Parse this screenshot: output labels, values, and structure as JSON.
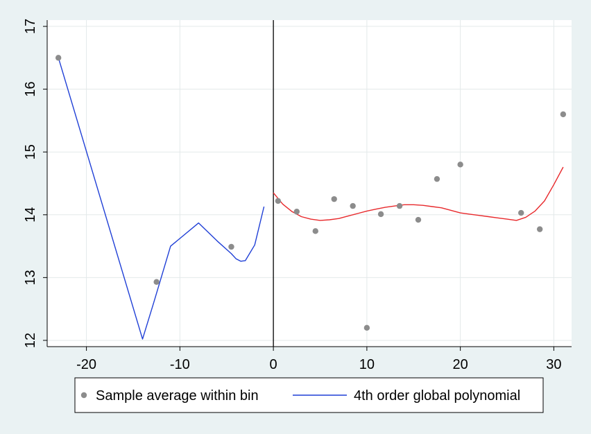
{
  "chart_data": {
    "type": "scatter",
    "title": "",
    "xlabel": "",
    "ylabel": "",
    "xlim": [
      -24.2,
      31.9
    ],
    "ylim": [
      11.9,
      17.1
    ],
    "xticks": [
      -20,
      -10,
      0,
      10,
      20,
      30
    ],
    "yticks": [
      12,
      13,
      14,
      15,
      16,
      17
    ],
    "xtick_labels": [
      "-20",
      "-10",
      "0",
      "10",
      "20",
      "30"
    ],
    "ytick_labels": [
      "12",
      "13",
      "14",
      "15",
      "16",
      "17"
    ],
    "grid": true,
    "cutoff_x": 0,
    "legend_position": "bottom",
    "colors": {
      "points": "#8c8c8c",
      "left_fit": "#1f3fd6",
      "right_fit": "#e8282b",
      "cutoff": "#000000",
      "plot_bg": "#ffffff",
      "outer_bg": "#eaf2f3",
      "grid": "#e3e9ea"
    },
    "series": [
      {
        "name": "Sample average within bin",
        "kind": "scatter",
        "points": [
          [
            -23,
            16.5
          ],
          [
            -12.5,
            12.93
          ],
          [
            -4.5,
            13.49
          ],
          [
            0.5,
            14.22
          ],
          [
            2.5,
            14.05
          ],
          [
            4.5,
            13.74
          ],
          [
            6.5,
            14.25
          ],
          [
            8.5,
            14.14
          ],
          [
            10,
            12.2
          ],
          [
            11.5,
            14.01
          ],
          [
            13.5,
            14.14
          ],
          [
            15.5,
            13.92
          ],
          [
            17.5,
            14.57
          ],
          [
            20,
            14.8
          ],
          [
            26.5,
            14.03
          ],
          [
            28.5,
            13.77
          ],
          [
            31,
            15.6
          ]
        ]
      },
      {
        "name": "4th order global polynomial",
        "kind": "line",
        "points": [
          [
            -23,
            16.5
          ],
          [
            -14,
            12.02
          ],
          [
            -12.8,
            12.6
          ],
          [
            -11,
            13.5
          ],
          [
            -8,
            13.87
          ],
          [
            -6,
            13.58
          ],
          [
            -4.5,
            13.38
          ],
          [
            -4,
            13.3
          ],
          [
            -3.5,
            13.26
          ],
          [
            -3,
            13.27
          ],
          [
            -2,
            13.52
          ],
          [
            -1,
            14.13
          ]
        ]
      },
      {
        "name": "",
        "kind": "line",
        "points": [
          [
            0,
            14.35
          ],
          [
            1,
            14.17
          ],
          [
            2,
            14.05
          ],
          [
            3,
            13.97
          ],
          [
            4,
            13.93
          ],
          [
            5,
            13.91
          ],
          [
            6,
            13.92
          ],
          [
            7,
            13.94
          ],
          [
            8,
            13.98
          ],
          [
            9,
            14.02
          ],
          [
            10,
            14.06
          ],
          [
            11,
            14.09
          ],
          [
            12,
            14.12
          ],
          [
            13,
            14.14
          ],
          [
            14,
            14.16
          ],
          [
            15,
            14.16
          ],
          [
            16,
            14.15
          ],
          [
            17,
            14.13
          ],
          [
            18,
            14.11
          ],
          [
            19,
            14.07
          ],
          [
            20,
            14.03
          ],
          [
            21,
            14.01
          ],
          [
            22,
            13.99
          ],
          [
            23,
            13.97
          ],
          [
            24,
            13.95
          ],
          [
            25,
            13.93
          ],
          [
            26,
            13.91
          ],
          [
            27,
            13.96
          ],
          [
            28,
            14.06
          ],
          [
            29,
            14.22
          ],
          [
            30,
            14.48
          ],
          [
            31,
            14.76
          ]
        ]
      }
    ]
  }
}
